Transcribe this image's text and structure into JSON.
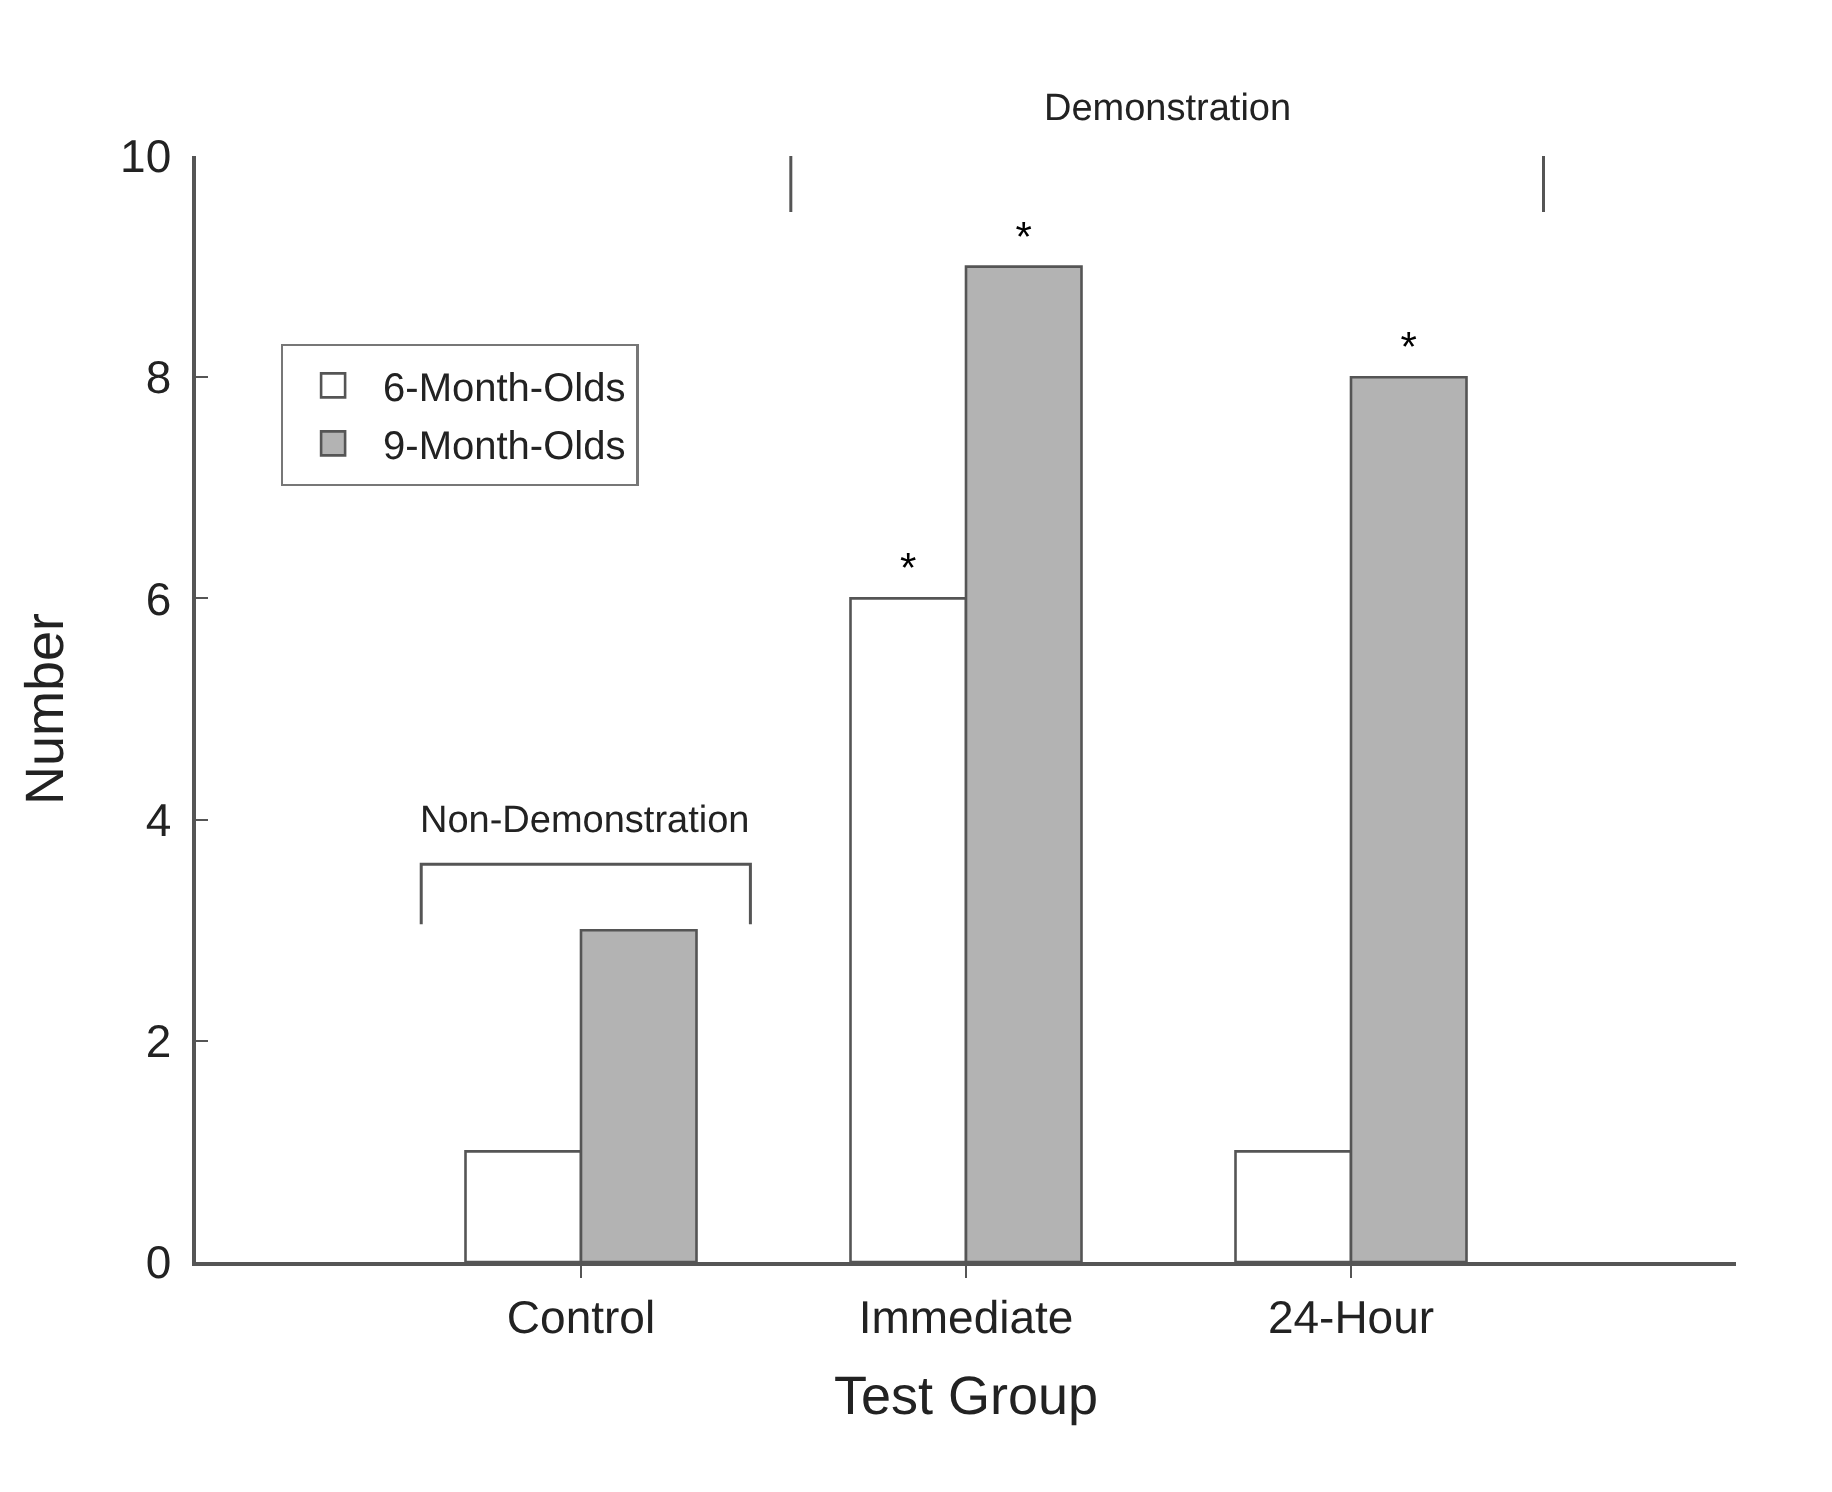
{
  "chart_data": {
    "type": "bar",
    "xlabel": "Test Group",
    "ylabel": "Number",
    "categories": [
      "Control",
      "Immediate",
      "24-Hour"
    ],
    "series": [
      {
        "name": "6-Month-Olds",
        "color": "#ffffff",
        "values": [
          1,
          6,
          1
        ],
        "value_labels": [
          null,
          "*",
          null
        ]
      },
      {
        "name": "9-Month-Olds",
        "color": "#b3b3b3",
        "values": [
          3,
          9,
          8
        ],
        "value_labels": [
          null,
          "*",
          "*"
        ]
      }
    ],
    "ylim": [
      0,
      10
    ],
    "yticks": [
      0,
      2,
      4,
      6,
      8,
      10
    ],
    "legend": "top left",
    "annotations": [
      "Non-Demonstration",
      "Demonstration"
    ]
  }
}
